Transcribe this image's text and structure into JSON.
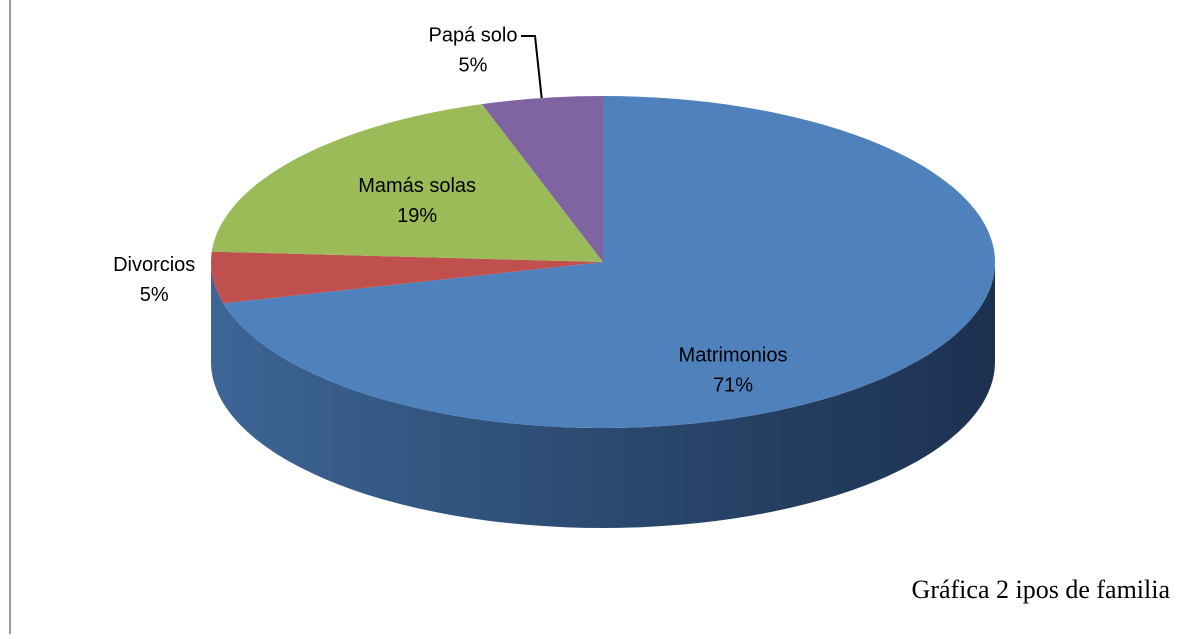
{
  "chart_data": {
    "type": "pie",
    "categories": [
      "Matrimonios",
      "Divorcios",
      "Mamás solas",
      "Papá solo"
    ],
    "values": [
      71,
      5,
      19,
      5
    ],
    "value_labels": [
      "71%",
      "5%",
      "19%",
      "5%"
    ],
    "colors": [
      "#4f81bd",
      "#c0504d",
      "#9bbb59",
      "#8064a2"
    ],
    "caption": "Gráfica 2 ipos de familia"
  }
}
